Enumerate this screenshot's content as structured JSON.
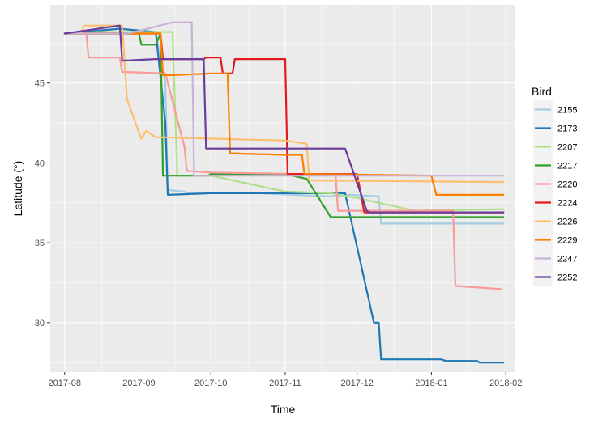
{
  "chart_data": {
    "type": "line",
    "xlabel": "Time",
    "ylabel": "Latitude (°)",
    "x_ticks": [
      {
        "date": "2017-08-01",
        "label": "2017-08"
      },
      {
        "date": "2017-09-01",
        "label": "2017-09"
      },
      {
        "date": "2017-10-01",
        "label": "2017-10"
      },
      {
        "date": "2017-11-01",
        "label": "2017-11"
      },
      {
        "date": "2017-12-01",
        "label": "2017-12"
      },
      {
        "date": "2018-01-01",
        "label": "2018-01"
      },
      {
        "date": "2018-02-01",
        "label": "2018-02"
      }
    ],
    "xlim": [
      "2017-07-26",
      "2018-02-05"
    ],
    "y_ticks": [
      30,
      35,
      40,
      45
    ],
    "ylim": [
      26.9,
      49.9
    ],
    "grid": true,
    "legend": {
      "title": "Bird",
      "position": "right"
    },
    "series": [
      {
        "name": "2155",
        "color": "#a6cee3",
        "x": [
          "2017-08-01",
          "2017-08-25",
          "2017-09-08",
          "2017-09-12",
          "2017-09-13",
          "2017-09-20",
          "2017-09-21",
          "2017-10-20",
          "2017-11-05",
          "2017-11-20",
          "2017-11-28",
          "2017-12-10",
          "2017-12-11",
          "2018-01-31"
        ],
        "y": [
          48.1,
          48.2,
          48.1,
          45.0,
          38.3,
          38.2,
          38.1,
          38.1,
          38.0,
          37.9,
          38.0,
          37.9,
          36.2,
          36.2
        ]
      },
      {
        "name": "2173",
        "color": "#1f78b4",
        "x": [
          "2017-08-01",
          "2017-08-24",
          "2017-09-08",
          "2017-09-12",
          "2017-09-13",
          "2017-10-01",
          "2017-10-20",
          "2017-11-01",
          "2017-11-26",
          "2017-12-08",
          "2017-12-10",
          "2017-12-11",
          "2018-01-05",
          "2018-01-07",
          "2018-01-20",
          "2018-01-21",
          "2018-01-31"
        ],
        "y": [
          48.1,
          48.4,
          48.2,
          42.5,
          38.0,
          38.1,
          38.1,
          38.1,
          38.1,
          30.0,
          30.0,
          27.7,
          27.7,
          27.6,
          27.6,
          27.5,
          27.5
        ]
      },
      {
        "name": "2207",
        "color": "#b2df8a",
        "x": [
          "2017-08-01",
          "2017-08-15",
          "2017-09-15",
          "2017-09-17",
          "2017-10-01",
          "2017-11-01",
          "2017-11-20",
          "2017-12-01",
          "2017-12-25",
          "2018-01-31"
        ],
        "y": [
          48.1,
          48.2,
          48.2,
          39.2,
          39.2,
          38.2,
          38.1,
          37.8,
          37.0,
          37.1
        ]
      },
      {
        "name": "2217",
        "color": "#33a02c",
        "x": [
          "2017-08-01",
          "2017-09-01",
          "2017-09-02",
          "2017-09-08",
          "2017-09-10",
          "2017-09-11",
          "2017-09-30",
          "2017-10-01",
          "2017-11-01",
          "2017-11-10",
          "2017-11-20",
          "2017-12-01",
          "2018-01-31"
        ],
        "y": [
          48.1,
          48.1,
          47.4,
          47.4,
          48.1,
          39.2,
          39.2,
          39.3,
          39.3,
          39.0,
          36.6,
          36.6,
          36.6
        ]
      },
      {
        "name": "2220",
        "color": "#fb9a99",
        "x": [
          "2017-08-01",
          "2017-08-10",
          "2017-08-11",
          "2017-08-24",
          "2017-08-25",
          "2017-09-12",
          "2017-09-20",
          "2017-09-21",
          "2017-10-01",
          "2017-11-10",
          "2017-11-22",
          "2017-11-23",
          "2018-01-01",
          "2018-01-10",
          "2018-01-11",
          "2018-01-30"
        ],
        "y": [
          48.1,
          48.2,
          46.6,
          46.6,
          45.7,
          45.6,
          41.0,
          39.5,
          39.4,
          39.3,
          39.3,
          37.0,
          37.0,
          37.0,
          32.3,
          32.1
        ]
      },
      {
        "name": "2224",
        "color": "#e31a1c",
        "x": [
          "2017-08-01",
          "2017-08-25",
          "2017-08-26",
          "2017-09-10",
          "2017-09-11",
          "2017-09-28",
          "2017-09-29",
          "2017-10-05",
          "2017-10-06",
          "2017-10-10",
          "2017-10-11",
          "2017-11-01",
          "2017-11-02",
          "2017-12-01",
          "2017-12-04",
          "2018-01-31"
        ],
        "y": [
          48.1,
          48.1,
          48.1,
          48.1,
          46.5,
          46.5,
          46.6,
          46.6,
          45.6,
          45.6,
          46.5,
          46.5,
          39.3,
          39.3,
          36.9,
          36.9
        ]
      },
      {
        "name": "2226",
        "color": "#fdbf6f",
        "x": [
          "2017-08-01",
          "2017-08-08",
          "2017-08-09",
          "2017-08-25",
          "2017-08-27",
          "2017-09-02",
          "2017-09-04",
          "2017-09-08",
          "2017-09-10",
          "2017-11-01",
          "2017-11-10",
          "2017-11-11",
          "2018-01-31"
        ],
        "y": [
          48.1,
          48.2,
          48.6,
          48.6,
          44.0,
          41.5,
          42.0,
          41.6,
          41.6,
          41.4,
          41.2,
          38.9,
          38.8
        ]
      },
      {
        "name": "2229",
        "color": "#ff7f00",
        "x": [
          "2017-08-01",
          "2017-09-10",
          "2017-09-11",
          "2017-09-15",
          "2017-10-01",
          "2017-10-08",
          "2017-10-09",
          "2017-11-01",
          "2017-11-08",
          "2017-11-09",
          "2018-01-01",
          "2018-01-03",
          "2018-01-31"
        ],
        "y": [
          48.1,
          48.1,
          45.5,
          45.5,
          45.6,
          45.6,
          40.6,
          40.5,
          40.5,
          39.3,
          39.2,
          38.0,
          38.0
        ]
      },
      {
        "name": "2247",
        "color": "#cab2d6",
        "x": [
          "2017-08-01",
          "2017-08-27",
          "2017-09-02",
          "2017-09-15",
          "2017-09-16",
          "2017-09-23",
          "2017-09-24",
          "2017-10-01",
          "2017-11-01",
          "2018-01-01",
          "2018-01-31"
        ],
        "y": [
          48.1,
          48.1,
          48.3,
          48.8,
          48.8,
          48.8,
          39.2,
          39.2,
          39.2,
          39.2,
          39.2
        ]
      },
      {
        "name": "2252",
        "color": "#6a3d9a",
        "x": [
          "2017-08-01",
          "2017-08-24",
          "2017-08-25",
          "2017-09-08",
          "2017-09-28",
          "2017-09-29",
          "2017-11-01",
          "2017-11-26",
          "2017-12-05",
          "2017-12-06",
          "2018-01-31"
        ],
        "y": [
          48.1,
          48.6,
          46.4,
          46.5,
          46.5,
          40.9,
          40.9,
          40.9,
          37.0,
          36.9,
          36.9
        ]
      }
    ]
  }
}
